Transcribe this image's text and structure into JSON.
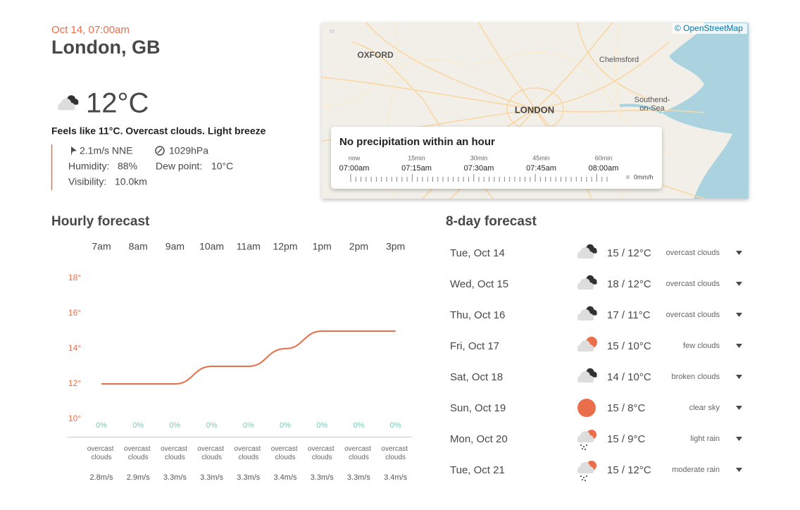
{
  "header": {
    "date": "Oct 14, 07:00am",
    "city": "London, GB"
  },
  "current": {
    "icon": "clouds",
    "temperature": "12°C",
    "summary": "Feels like 11°C. Overcast clouds. Light breeze",
    "wind": "2.1m/s NNE",
    "pressure": "1029hPa",
    "humidity_label": "Humidity:",
    "humidity": "88%",
    "dew_point_label": "Dew point:",
    "dew_point": "10°C",
    "visibility_label": "Visibility:",
    "visibility": "10.0km"
  },
  "map": {
    "attribution": "© OpenStreetMap",
    "places": [
      "OXFORD",
      "Chelmsford",
      "LONDON",
      "Southend-",
      "on-Sea"
    ],
    "precipitation": {
      "title": "No precipitation within an hour",
      "offsets": [
        "now",
        "15min",
        "30min",
        "45min",
        "60min"
      ],
      "times": [
        "07:00am",
        "07:15am",
        "07:30am",
        "07:45am",
        "08:00am"
      ],
      "unit": "0mm/h"
    }
  },
  "chart_data": {
    "type": "line",
    "title": "Hourly forecast",
    "categories": [
      "7am",
      "8am",
      "9am",
      "10am",
      "11am",
      "12pm",
      "1pm",
      "2pm",
      "3pm"
    ],
    "values": [
      12,
      12,
      12,
      13,
      13,
      14,
      15,
      15,
      15
    ],
    "color": "#eb6e4b",
    "ylim": [
      9,
      19
    ],
    "yticks": [
      {
        "value": 10,
        "label": "10°"
      },
      {
        "value": 12,
        "label": "12°"
      },
      {
        "value": 14,
        "label": "14°"
      },
      {
        "value": 16,
        "label": "16°"
      },
      {
        "value": 18,
        "label": "18°"
      }
    ],
    "precipitation": {
      "values": [
        0,
        0,
        0,
        0,
        0,
        0,
        0,
        0,
        0
      ],
      "value_labels": [
        "0%",
        "0%",
        "0%",
        "0%",
        "0%",
        "0%",
        "0%",
        "0%",
        "0%"
      ],
      "color": "#7bc9b6"
    },
    "descriptions": [
      "overcast clouds",
      "overcast clouds",
      "overcast clouds",
      "overcast clouds",
      "overcast clouds",
      "overcast clouds",
      "overcast clouds",
      "overcast clouds",
      "overcast clouds"
    ],
    "wind": [
      "2.8m/s",
      "2.9m/s",
      "3.3m/s",
      "3.3m/s",
      "3.3m/s",
      "3.4m/s",
      "3.3m/s",
      "3.3m/s",
      "3.4m/s"
    ]
  },
  "daily": {
    "title": "8-day forecast",
    "rows": [
      {
        "day": "Tue, Oct 14",
        "icon": "clouds",
        "temperature": "15 / 12°C",
        "description": "overcast clouds"
      },
      {
        "day": "Wed, Oct 15",
        "icon": "clouds",
        "temperature": "18 / 12°C",
        "description": "overcast clouds"
      },
      {
        "day": "Thu, Oct 16",
        "icon": "clouds",
        "temperature": "17 / 11°C",
        "description": "overcast clouds"
      },
      {
        "day": "Fri, Oct 17",
        "icon": "few",
        "temperature": "15 / 10°C",
        "description": "few clouds"
      },
      {
        "day": "Sat, Oct 18",
        "icon": "clouds",
        "temperature": "14 / 10°C",
        "description": "broken clouds"
      },
      {
        "day": "Sun, Oct 19",
        "icon": "clear",
        "temperature": "15 / 8°C",
        "description": "clear sky"
      },
      {
        "day": "Mon, Oct 20",
        "icon": "rain",
        "temperature": "15 / 9°C",
        "description": "light rain"
      },
      {
        "day": "Tue, Oct 21",
        "icon": "rain",
        "temperature": "15 / 12°C",
        "description": "moderate rain"
      }
    ]
  }
}
